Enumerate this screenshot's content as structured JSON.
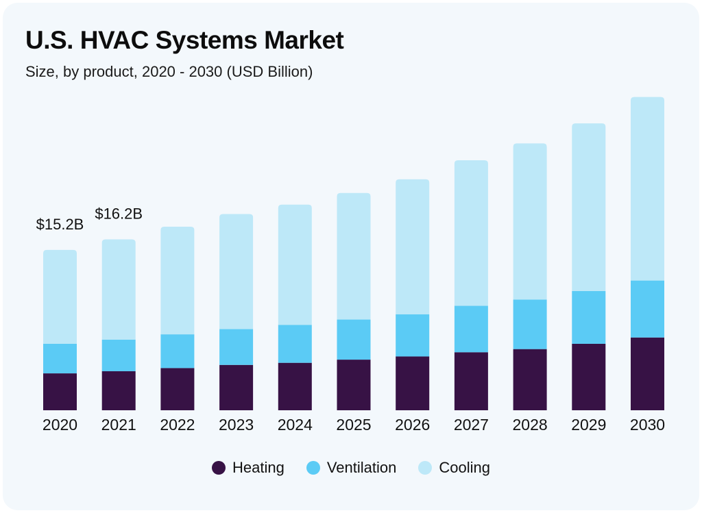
{
  "chart_data": {
    "type": "bar",
    "stacked": true,
    "title": "U.S. HVAC Systems Market",
    "subtitle": "Size, by product, 2020 - 2030 (USD Billion)",
    "categories": [
      "2020",
      "2021",
      "2022",
      "2023",
      "2024",
      "2025",
      "2026",
      "2027",
      "2028",
      "2029",
      "2030"
    ],
    "series": [
      {
        "name": "Heating",
        "color": "#371245",
        "values": [
          3.5,
          3.7,
          4.0,
          4.3,
          4.5,
          4.8,
          5.1,
          5.5,
          5.8,
          6.3,
          6.9
        ]
      },
      {
        "name": "Ventilation",
        "color": "#5bcbf5",
        "values": [
          2.8,
          3.0,
          3.2,
          3.4,
          3.6,
          3.8,
          4.0,
          4.4,
          4.7,
          5.0,
          5.4
        ]
      },
      {
        "name": "Cooling",
        "color": "#bde8f8",
        "values": [
          8.9,
          9.5,
          10.2,
          10.9,
          11.4,
          12.0,
          12.8,
          13.8,
          14.8,
          15.9,
          17.4
        ]
      }
    ],
    "data_labels": [
      {
        "category": "2020",
        "text": "$15.2B"
      },
      {
        "category": "2021",
        "text": "$16.2B"
      }
    ],
    "xlabel": "",
    "ylabel": "",
    "grid": false,
    "legend": "bottom-center"
  }
}
